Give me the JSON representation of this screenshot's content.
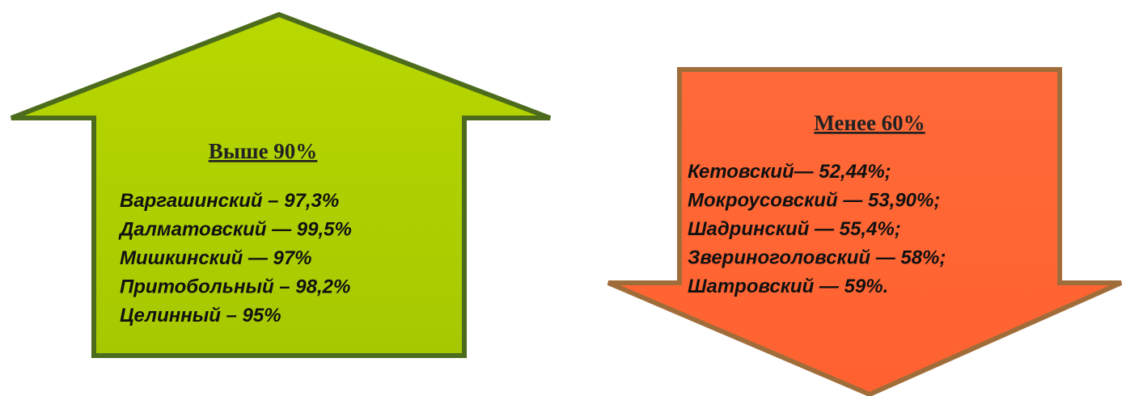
{
  "up": {
    "title": "Выше 90%",
    "items": [
      "Варгашинский – 97,3%",
      "Далматовский — 99,5%",
      "Мишкинский — 97%",
      "Притобольный – 98,2%",
      "Целинный – 95%"
    ]
  },
  "down": {
    "title": "Менее 60%",
    "items": [
      "Кетовский— 52,44%;",
      "Мокроусовский — 53,90%;",
      "Шадринский — 55,4%;",
      "Звериноголовский — 58%;",
      "Шатровский — 59%."
    ]
  }
}
